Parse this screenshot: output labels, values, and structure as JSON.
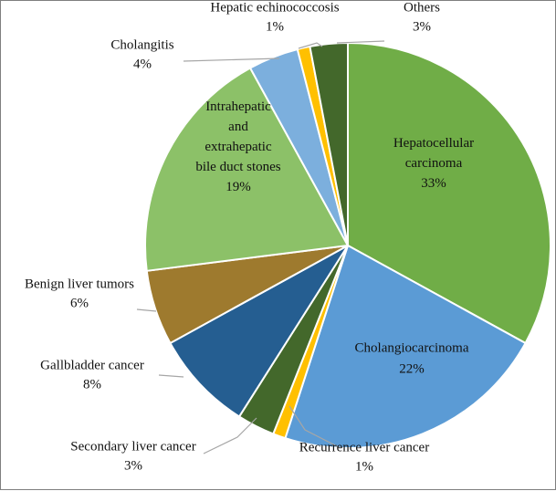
{
  "chart_data": {
    "type": "pie",
    "title": "",
    "slices": [
      {
        "label": [
          "Hepatocellular",
          "carcinoma"
        ],
        "value": 33,
        "value_label": "33%",
        "color": "#70ad47"
      },
      {
        "label": [
          "Cholangiocarcinoma"
        ],
        "value": 22,
        "value_label": "22%",
        "color": "#5b9bd5"
      },
      {
        "label": [
          "Recurrence liver cancer"
        ],
        "value": 1,
        "value_label": "1%",
        "color": "#ffc000"
      },
      {
        "label": [
          "Secondary liver cancer"
        ],
        "value": 3,
        "value_label": "3%",
        "color": "#43682b"
      },
      {
        "label": [
          "Gallbladder cancer"
        ],
        "value": 8,
        "value_label": "8%",
        "color": "#255e91"
      },
      {
        "label": [
          "Benign  liver tumors"
        ],
        "value": 6,
        "value_label": "6%",
        "color": "#9e7a2e"
      },
      {
        "label": [
          "Intrahepatic",
          "and",
          "extrahepatic",
          "bile duct stones"
        ],
        "value": 19,
        "value_label": "19%",
        "color": "#8cc168"
      },
      {
        "label": [
          "Cholangitis"
        ],
        "value": 4,
        "value_label": "4%",
        "color": "#7cafdd"
      },
      {
        "label": [
          "Hepatic echinococcosis"
        ],
        "value": 1,
        "value_label": "1%",
        "color": "#ffc000"
      },
      {
        "label": [
          "Others"
        ],
        "value": 3,
        "value_label": "3%",
        "color": "#43682b"
      }
    ],
    "start_angle_deg": 0,
    "direction": "clockwise",
    "legend": "none"
  }
}
